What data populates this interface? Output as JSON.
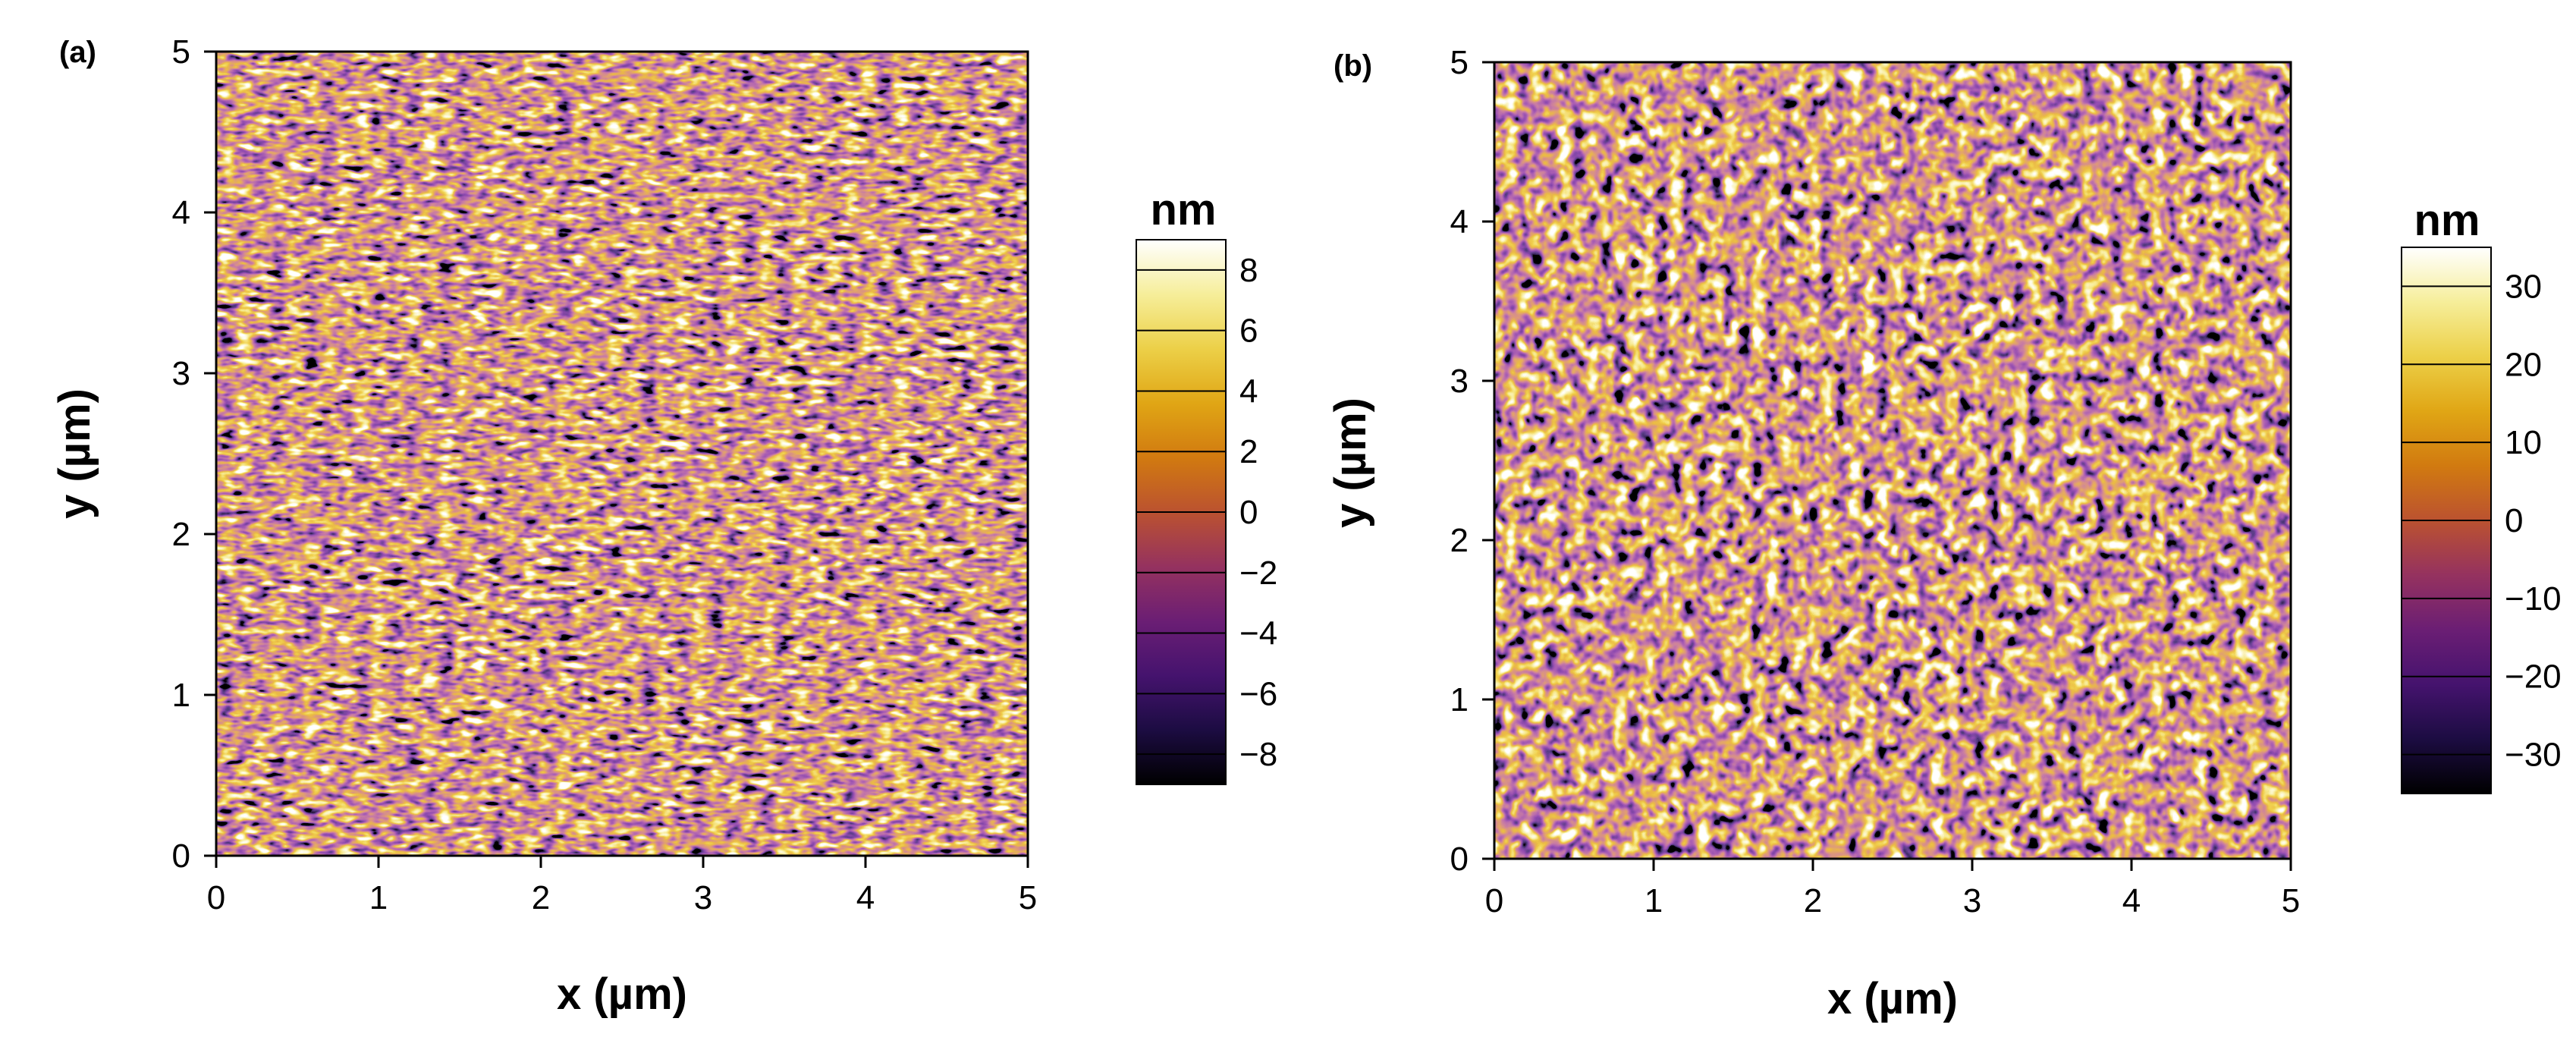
{
  "colors": {
    "colormap": [
      "#000000",
      "#1c0c42",
      "#45136e",
      "#6b1e74",
      "#95325f",
      "#bb5230",
      "#d17a10",
      "#e0a615",
      "#ecd048",
      "#f6ee9a",
      "#ffffff"
    ],
    "axis": "#000000",
    "background": "#ffffff"
  },
  "chart_data": [
    {
      "type": "heatmap",
      "panel_label": "(a)",
      "xlabel": "x (µm)",
      "ylabel": "y (µm)",
      "xlim": [
        0,
        5
      ],
      "ylim": [
        0,
        5
      ],
      "xticks": [
        "0",
        "1",
        "2",
        "3",
        "4",
        "5"
      ],
      "yticks": [
        "0",
        "1",
        "2",
        "3",
        "4",
        "5"
      ],
      "colorbar_unit": "nm",
      "colorbar_range": [
        -9,
        9
      ],
      "colorbar_ticks": [
        {
          "value": 8,
          "label": "8"
        },
        {
          "value": 6,
          "label": "6"
        },
        {
          "value": 4,
          "label": "4"
        },
        {
          "value": 2,
          "label": "2"
        },
        {
          "value": 0,
          "label": "0"
        },
        {
          "value": -2,
          "label": "−2"
        },
        {
          "value": -4,
          "label": "−4"
        },
        {
          "value": -6,
          "label": "−6"
        },
        {
          "value": -8,
          "label": "−8"
        }
      ],
      "texture": "fine horizontally elongated grains"
    },
    {
      "type": "heatmap",
      "panel_label": "(b)",
      "xlabel": "x (µm)",
      "ylabel": "y (µm)",
      "xlim": [
        0,
        5
      ],
      "ylim": [
        0,
        5
      ],
      "xticks": [
        "0",
        "1",
        "2",
        "3",
        "4",
        "5"
      ],
      "yticks": [
        "0",
        "1",
        "2",
        "3",
        "4",
        "5"
      ],
      "colorbar_unit": "nm",
      "colorbar_range": [
        -35,
        35
      ],
      "colorbar_ticks": [
        {
          "value": 30,
          "label": "30"
        },
        {
          "value": 20,
          "label": "20"
        },
        {
          "value": 10,
          "label": "10"
        },
        {
          "value": 0,
          "label": "0"
        },
        {
          "value": -10,
          "label": "−10"
        },
        {
          "value": -20,
          "label": "−20"
        },
        {
          "value": -30,
          "label": "−30"
        }
      ],
      "texture": "coarse isotropic grains"
    }
  ]
}
